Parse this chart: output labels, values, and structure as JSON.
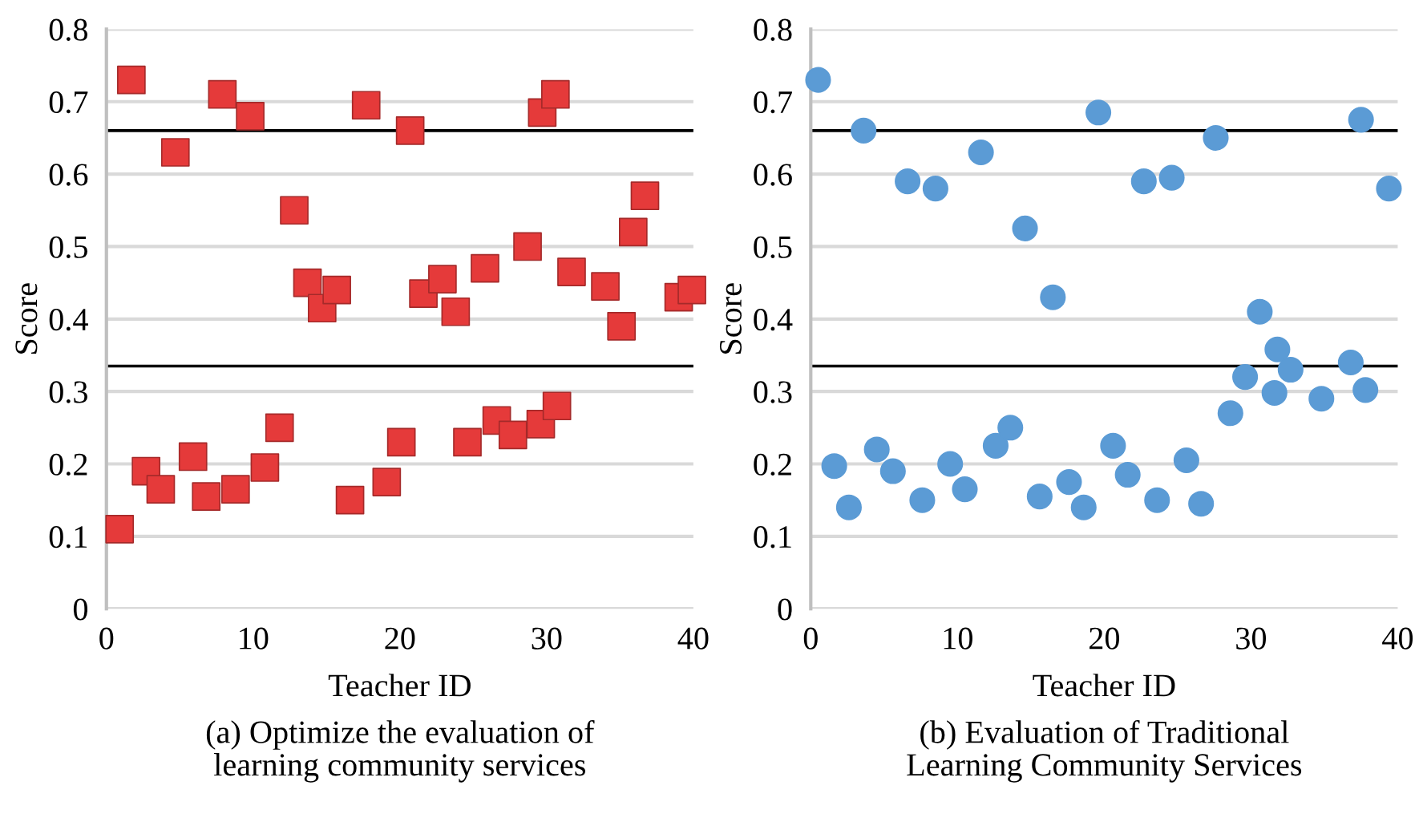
{
  "chart_data": [
    {
      "type": "scatter",
      "title": "(a) Optimize the evaluation of\nlearning community services",
      "xlabel": "Teacher ID",
      "ylabel": "Score",
      "marker": "square",
      "grid": "y",
      "xlim": [
        0,
        40
      ],
      "xticks": [
        0,
        10,
        20,
        30,
        40
      ],
      "ylim": [
        0,
        0.8
      ],
      "yticks": [
        0,
        0.1,
        0.2,
        0.3,
        0.4,
        0.5,
        0.6,
        0.7,
        0.8
      ],
      "ref_lines": [
        {
          "axis": "y",
          "value": 0.66,
          "color": "#000000"
        },
        {
          "axis": "y",
          "value": 0.335,
          "color": "#000000"
        }
      ],
      "series": [
        {
          "color": "#e53a3a",
          "x": [
            0.9,
            1.7,
            2.7,
            3.7,
            4.7,
            5.9,
            6.8,
            7.9,
            8.8,
            9.8,
            10.8,
            11.8,
            12.8,
            13.7,
            14.7,
            15.7,
            16.6,
            17.7,
            19.1,
            20.1,
            20.7,
            21.6,
            22.9,
            23.8,
            24.6,
            25.8,
            26.6,
            27.7,
            28.7,
            29.6,
            29.7,
            30.6,
            30.7,
            31.7,
            34.0,
            35.1,
            35.9,
            36.7,
            39.0,
            39.9
          ],
          "values": [
            0.11,
            0.73,
            0.19,
            0.165,
            0.63,
            0.21,
            0.155,
            0.71,
            0.165,
            0.68,
            0.195,
            0.25,
            0.55,
            0.45,
            0.415,
            0.44,
            0.15,
            0.695,
            0.175,
            0.23,
            0.66,
            0.435,
            0.455,
            0.41,
            0.23,
            0.47,
            0.26,
            0.24,
            0.5,
            0.255,
            0.685,
            0.71,
            0.28,
            0.465,
            0.445,
            0.39,
            0.52,
            0.57,
            0.43,
            0.44
          ]
        }
      ]
    },
    {
      "type": "scatter",
      "title": "(b) Evaluation of Traditional\nLearning Community Services",
      "xlabel": "Teacher ID",
      "ylabel": "Score",
      "marker": "circle",
      "grid": "y",
      "xlim": [
        0,
        40
      ],
      "xticks": [
        0,
        10,
        20,
        30,
        40
      ],
      "ylim": [
        0,
        0.8
      ],
      "yticks": [
        0,
        0.1,
        0.2,
        0.3,
        0.4,
        0.5,
        0.6,
        0.7,
        0.8
      ],
      "ref_lines": [
        {
          "axis": "y",
          "value": 0.66,
          "color": "#000000"
        },
        {
          "axis": "y",
          "value": 0.335,
          "color": "#000000"
        }
      ],
      "series": [
        {
          "color": "#5b9bd5",
          "x": [
            0.5,
            1.6,
            2.6,
            3.6,
            4.5,
            5.6,
            6.6,
            7.6,
            8.5,
            9.5,
            10.5,
            11.6,
            12.6,
            13.6,
            14.6,
            15.6,
            16.5,
            17.6,
            18.6,
            19.6,
            20.6,
            21.6,
            22.7,
            23.6,
            24.6,
            25.6,
            26.6,
            27.6,
            28.6,
            29.6,
            30.6,
            31.6,
            31.8,
            32.7,
            34.8,
            36.8,
            37.5,
            37.8,
            39.4
          ],
          "values": [
            0.73,
            0.197,
            0.14,
            0.66,
            0.22,
            0.19,
            0.59,
            0.15,
            0.58,
            0.2,
            0.165,
            0.63,
            0.225,
            0.25,
            0.525,
            0.155,
            0.43,
            0.175,
            0.14,
            0.685,
            0.225,
            0.185,
            0.59,
            0.15,
            0.595,
            0.205,
            0.145,
            0.65,
            0.27,
            0.32,
            0.41,
            0.298,
            0.358,
            0.33,
            0.29,
            0.34,
            0.675,
            0.302,
            0.58
          ]
        }
      ]
    }
  ]
}
